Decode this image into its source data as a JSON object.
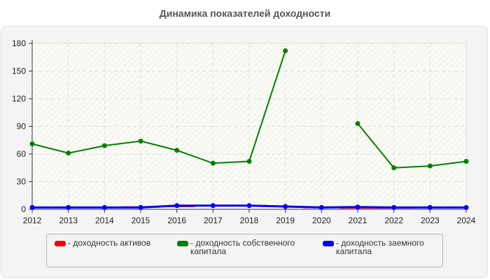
{
  "chart_data": {
    "type": "line",
    "title": "Динамика показателей доходности",
    "xlabel": "",
    "ylabel": "",
    "ylim": [
      0,
      180
    ],
    "yticks": [
      0,
      30,
      60,
      90,
      120,
      150,
      180
    ],
    "x": [
      "2012",
      "2013",
      "2014",
      "2015",
      "2016",
      "2017",
      "2018",
      "2019",
      "2020",
      "2021",
      "2022",
      "2023",
      "2024"
    ],
    "grid": true,
    "legend_position": "bottom",
    "series": [
      {
        "name": "- доходность активов",
        "color": "#ff0000",
        "values": [
          2,
          2,
          2,
          2.5,
          3,
          4,
          4,
          3,
          2,
          1.5,
          1.5,
          2,
          2
        ]
      },
      {
        "name": "- доходность собственного капитала",
        "color": "#008000",
        "values": [
          71,
          61,
          69,
          74,
          64,
          50,
          52,
          172,
          null,
          93,
          45,
          47,
          52
        ]
      },
      {
        "name": "- доходность заемного капитала",
        "color": "#0000ff",
        "values": [
          2,
          2,
          2,
          2,
          4,
          4,
          4,
          3,
          2,
          2.5,
          2,
          2,
          2
        ]
      }
    ]
  },
  "legend": {
    "items": [
      {
        "label_line1": "- доходность активов",
        "label_line2": "",
        "color": "#ff0000"
      },
      {
        "label_line1": "- доходность собственного",
        "label_line2": "капитала",
        "color": "#008000"
      },
      {
        "label_line1": "- доходность заемного",
        "label_line2": "капитала",
        "color": "#0000ff"
      }
    ]
  }
}
